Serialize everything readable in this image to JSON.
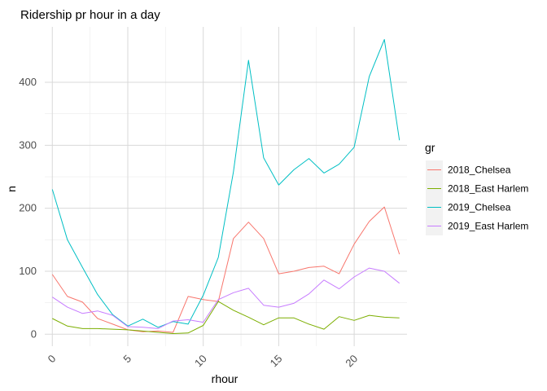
{
  "chart_data": {
    "type": "line",
    "title": "Ridership pr hour in a day",
    "xlabel": "rhour",
    "ylabel": "n",
    "xlim": [
      -0.5,
      23.5
    ],
    "ylim": [
      -19,
      488
    ],
    "x_ticks": [
      0,
      5,
      10,
      15,
      20
    ],
    "x_tick_labels": [
      "0",
      "5",
      "10",
      "15",
      "20"
    ],
    "y_ticks": [
      0,
      100,
      200,
      300,
      400
    ],
    "y_tick_labels": [
      "0",
      "100",
      "200",
      "300",
      "400"
    ],
    "x_tick_rotation_deg": 45,
    "grid": true,
    "legend_title": "gr",
    "legend_position": "right",
    "x": [
      0,
      1,
      2,
      3,
      4,
      5,
      6,
      7,
      8,
      9,
      10,
      11,
      12,
      13,
      14,
      15,
      16,
      17,
      18,
      19,
      20,
      21,
      22,
      23
    ],
    "series": [
      {
        "name": "2018_Chelsea",
        "color": "#F8766D",
        "values": [
          95,
          60,
          51,
          25,
          16,
          7,
          4,
          5,
          3,
          60,
          55,
          52,
          152,
          178,
          152,
          96,
          100,
          106,
          108,
          96,
          143,
          179,
          202,
          127
        ]
      },
      {
        "name": "2018_East Harlem",
        "color": "#7CAE00",
        "values": [
          25,
          13,
          9,
          9,
          8,
          7,
          5,
          3,
          1,
          2,
          14,
          52,
          38,
          27,
          15,
          26,
          26,
          16,
          8,
          28,
          22,
          30,
          27,
          26
        ]
      },
      {
        "name": "2019_Chelsea",
        "color": "#00BFC4",
        "values": [
          230,
          150,
          106,
          63,
          31,
          13,
          24,
          11,
          20,
          16,
          62,
          122,
          258,
          435,
          280,
          237,
          261,
          279,
          256,
          270,
          297,
          409,
          468,
          308
        ]
      },
      {
        "name": "2019_East Harlem",
        "color": "#C77CFF",
        "values": [
          59,
          43,
          33,
          37,
          30,
          12,
          11,
          9,
          21,
          23,
          19,
          55,
          66,
          73,
          46,
          43,
          49,
          64,
          86,
          72,
          91,
          105,
          100,
          81
        ]
      }
    ]
  }
}
